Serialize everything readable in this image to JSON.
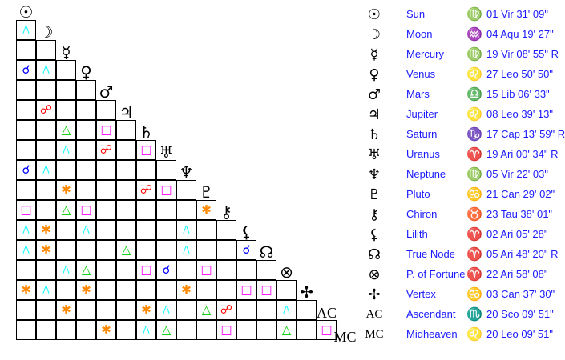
{
  "bodies": [
    {
      "name": "Sun",
      "glyph": "☉",
      "sign_glyph": "♍",
      "position": "01 Vir 31' 09\""
    },
    {
      "name": "Moon",
      "glyph": "☽",
      "sign_glyph": "♒",
      "position": "04 Aqu 19' 27\""
    },
    {
      "name": "Mercury",
      "glyph": "☿",
      "sign_glyph": "♍",
      "position": "19 Vir 08' 55\" R"
    },
    {
      "name": "Venus",
      "glyph": "♀",
      "sign_glyph": "♌",
      "position": "27 Leo 50' 50\""
    },
    {
      "name": "Mars",
      "glyph": "♂",
      "sign_glyph": "♎",
      "position": "15 Lib 06' 33\""
    },
    {
      "name": "Jupiter",
      "glyph": "♃",
      "sign_glyph": "♌",
      "position": "08 Leo 39' 13\""
    },
    {
      "name": "Saturn",
      "glyph": "♄",
      "sign_glyph": "♑",
      "position": "17 Cap 13' 59\" R"
    },
    {
      "name": "Uranus",
      "glyph": "♅",
      "sign_glyph": "♈",
      "position": "19 Ari 00' 34\" R"
    },
    {
      "name": "Neptune",
      "glyph": "♆",
      "sign_glyph": "♍",
      "position": "05 Vir 22' 03\""
    },
    {
      "name": "Pluto",
      "glyph": "♇",
      "sign_glyph": "♋",
      "position": "21 Can 29' 02\""
    },
    {
      "name": "Chiron",
      "glyph": "⚷",
      "sign_glyph": "♉",
      "position": "23 Tau 38' 01\""
    },
    {
      "name": "Lilith",
      "glyph": "⚸",
      "sign_glyph": "♈",
      "position": "02 Ari 05' 28\""
    },
    {
      "name": "True Node",
      "glyph": "☊",
      "sign_glyph": "♈",
      "position": "05 Ari 48' 20\" R"
    },
    {
      "name": "P. of Fortune",
      "glyph": "⊗",
      "sign_glyph": "♈",
      "position": "22 Ari 58' 08\""
    },
    {
      "name": "Vertex",
      "glyph": "✢",
      "sign_glyph": "♋",
      "position": "03 Can 37' 30\""
    },
    {
      "name": "Ascendant",
      "glyph": "AC",
      "sign_glyph": "♏",
      "position": "20 Sco 09' 51\""
    },
    {
      "name": "Midheaven",
      "glyph": "MC",
      "sign_glyph": "♌",
      "position": "20 Leo 09' 51\""
    }
  ],
  "aspect_types": {
    "conjunction": {
      "glyph": "☌",
      "color": "#0000ff"
    },
    "opposition": {
      "glyph": "☍",
      "color": "#ff0000"
    },
    "trine": {
      "glyph": "△",
      "color": "#00cc00"
    },
    "square": {
      "glyph": "□",
      "color": "#ff00ff"
    },
    "sextile": {
      "glyph": "✱",
      "color": "#ff8800"
    },
    "quincunx": {
      "glyph": "⚻",
      "color": "#00ffff"
    }
  },
  "aspects": [
    [
      "Moon",
      "Sun",
      "quincunx"
    ],
    [
      "Venus",
      "Sun",
      "conjunction"
    ],
    [
      "Venus",
      "Moon",
      "quincunx"
    ],
    [
      "Jupiter",
      "Moon",
      "opposition"
    ],
    [
      "Saturn",
      "Mercury",
      "trine"
    ],
    [
      "Saturn",
      "Mars",
      "square"
    ],
    [
      "Uranus",
      "Mercury",
      "quincunx"
    ],
    [
      "Uranus",
      "Mars",
      "opposition"
    ],
    [
      "Uranus",
      "Saturn",
      "square"
    ],
    [
      "Neptune",
      "Sun",
      "conjunction"
    ],
    [
      "Neptune",
      "Moon",
      "quincunx"
    ],
    [
      "Pluto",
      "Mercury",
      "sextile"
    ],
    [
      "Pluto",
      "Saturn",
      "opposition"
    ],
    [
      "Pluto",
      "Uranus",
      "square"
    ],
    [
      "Chiron",
      "Sun",
      "square"
    ],
    [
      "Chiron",
      "Mercury",
      "trine"
    ],
    [
      "Chiron",
      "Venus",
      "square"
    ],
    [
      "Chiron",
      "Pluto",
      "sextile"
    ],
    [
      "Lilith",
      "Sun",
      "quincunx"
    ],
    [
      "Lilith",
      "Moon",
      "sextile"
    ],
    [
      "Lilith",
      "Venus",
      "quincunx"
    ],
    [
      "Lilith",
      "Neptune",
      "quincunx"
    ],
    [
      "True Node",
      "Sun",
      "quincunx"
    ],
    [
      "True Node",
      "Moon",
      "sextile"
    ],
    [
      "True Node",
      "Jupiter",
      "trine"
    ],
    [
      "True Node",
      "Neptune",
      "quincunx"
    ],
    [
      "True Node",
      "Lilith",
      "conjunction"
    ],
    [
      "P. of Fortune",
      "Mercury",
      "quincunx"
    ],
    [
      "P. of Fortune",
      "Venus",
      "trine"
    ],
    [
      "P. of Fortune",
      "Saturn",
      "square"
    ],
    [
      "P. of Fortune",
      "Uranus",
      "conjunction"
    ],
    [
      "P. of Fortune",
      "Pluto",
      "square"
    ],
    [
      "Vertex",
      "Sun",
      "sextile"
    ],
    [
      "Vertex",
      "Moon",
      "quincunx"
    ],
    [
      "Vertex",
      "Venus",
      "sextile"
    ],
    [
      "Vertex",
      "Neptune",
      "sextile"
    ],
    [
      "Vertex",
      "Lilith",
      "square"
    ],
    [
      "Vertex",
      "True Node",
      "square"
    ],
    [
      "Ascendant",
      "Mercury",
      "sextile"
    ],
    [
      "Ascendant",
      "Saturn",
      "sextile"
    ],
    [
      "Ascendant",
      "Uranus",
      "quincunx"
    ],
    [
      "Ascendant",
      "Pluto",
      "trine"
    ],
    [
      "Ascendant",
      "Chiron",
      "opposition"
    ],
    [
      "Ascendant",
      "P. of Fortune",
      "quincunx"
    ],
    [
      "Midheaven",
      "Mars",
      "sextile"
    ],
    [
      "Midheaven",
      "Saturn",
      "quincunx"
    ],
    [
      "Midheaven",
      "Uranus",
      "trine"
    ],
    [
      "Midheaven",
      "Chiron",
      "square"
    ],
    [
      "Midheaven",
      "P. of Fortune",
      "trine"
    ],
    [
      "Midheaven",
      "Ascendant",
      "square"
    ]
  ]
}
